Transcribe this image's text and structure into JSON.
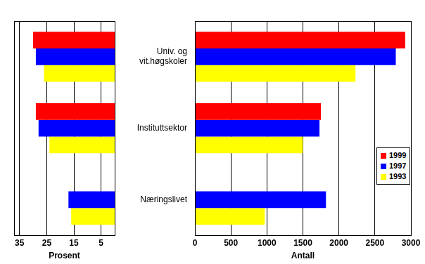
{
  "chart_data": [
    {
      "type": "bar",
      "orientation": "horizontal",
      "x_label": "Prosent",
      "categories": [
        "Univ. og\nvit.høgskoler",
        "Instituttsektor",
        "Næringslivet"
      ],
      "series": [
        {
          "name": "1999",
          "color": "#ff0000",
          "values": [
            30,
            29,
            null
          ]
        },
        {
          "name": "1997",
          "color": "#0000ff",
          "values": [
            29,
            28,
            17
          ]
        },
        {
          "name": "1993",
          "color": "#ffff00",
          "values": [
            26,
            24,
            16
          ]
        }
      ],
      "xlim": [
        37,
        0
      ],
      "xticks": [
        35,
        25,
        15,
        5
      ],
      "grid": true,
      "tick_labels": "x"
    },
    {
      "type": "bar",
      "orientation": "horizontal",
      "x_label": "Antall",
      "categories": [
        "Univ. og\nvit.høgskoler",
        "Instituttsektor",
        "Næringslivet"
      ],
      "series": [
        {
          "name": "1999",
          "color": "#ff0000",
          "values": [
            2920,
            1750,
            null
          ]
        },
        {
          "name": "1997",
          "color": "#0000ff",
          "values": [
            2790,
            1730,
            1820
          ]
        },
        {
          "name": "1993",
          "color": "#ffff00",
          "values": [
            2230,
            1500,
            970
          ]
        }
      ],
      "xlim": [
        0,
        3000
      ],
      "xticks": [
        0,
        500,
        1000,
        1500,
        2000,
        2500,
        3000
      ],
      "grid": true,
      "legend": "right"
    }
  ]
}
